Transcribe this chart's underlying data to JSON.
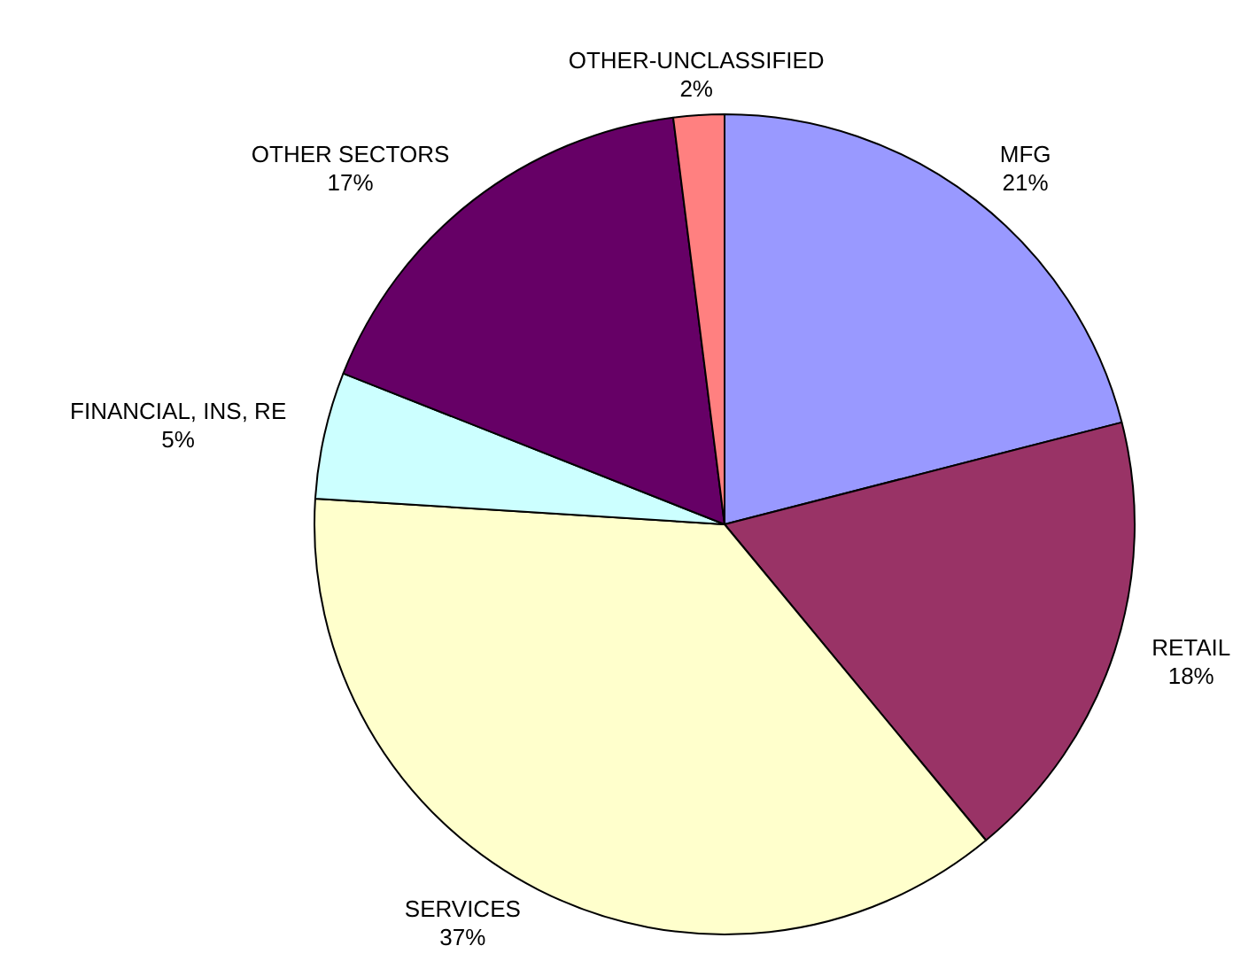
{
  "chart_data": {
    "type": "pie",
    "categories": [
      "MFG",
      "RETAIL",
      "SERVICES",
      "FINANCIAL, INS, RE",
      "OTHER SECTORS",
      "OTHER-UNCLASSIFIED"
    ],
    "values": [
      21,
      18,
      37,
      5,
      17,
      2
    ],
    "value_labels": [
      "21%",
      "18%",
      "37%",
      "5%",
      "17%",
      "2%"
    ],
    "colors": [
      "#9999ff",
      "#993366",
      "#ffffcc",
      "#ccffff",
      "#660066",
      "#ff8080"
    ],
    "legend": false
  }
}
